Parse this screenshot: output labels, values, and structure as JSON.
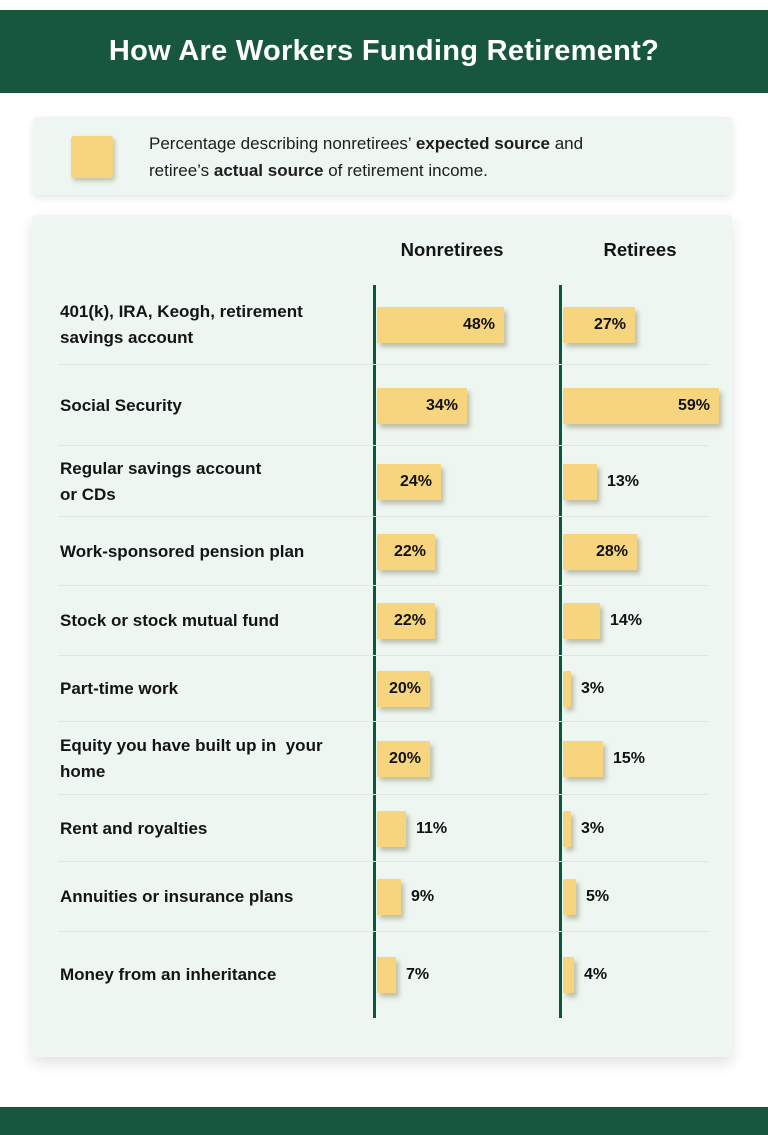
{
  "page": {
    "title": "How Are Workers Funding Retirement?"
  },
  "legend": {
    "lines": [
      {
        "segments": [
          {
            "text": "Percentage describing nonretirees’ ",
            "bold": false
          },
          {
            "text": "expected source",
            "bold": true
          },
          {
            "text": " and",
            "bold": false
          }
        ]
      },
      {
        "segments": [
          {
            "text": "retiree’s ",
            "bold": false
          },
          {
            "text": "actual source",
            "bold": true
          },
          {
            "text": " of retirement income.",
            "bold": false
          }
        ]
      }
    ]
  },
  "chart_data": {
    "type": "bar",
    "orientation": "horizontal",
    "unit": "%",
    "columns": [
      "Nonretirees",
      "Retirees"
    ],
    "categories": [
      "401(k), IRA, Keogh, retirement\nsavings account",
      "Social Security",
      "Regular savings account\nor CDs",
      "Work-sponsored pension plan",
      "Stock or stock mutual fund",
      "Part-time work",
      "Equity you have built up in  your\nhome",
      "Rent and royalties",
      "Annuities or insurance plans",
      "Money from an inheritance"
    ],
    "series": [
      {
        "name": "Nonretirees",
        "values": [
          48,
          34,
          24,
          22,
          22,
          20,
          20,
          11,
          9,
          7
        ]
      },
      {
        "name": "Retirees",
        "values": [
          27,
          59,
          13,
          28,
          14,
          3,
          15,
          3,
          5,
          4
        ]
      }
    ],
    "xlim": [
      0,
      62
    ],
    "grid": false,
    "value_labels": "end-of-bar"
  },
  "colors": {
    "banner_green": "#17573E",
    "axis_green": "#0A5740",
    "bar_yellow": "#F6D57E",
    "card_mint": "#EDF6F1",
    "text_dark": "#141414"
  }
}
